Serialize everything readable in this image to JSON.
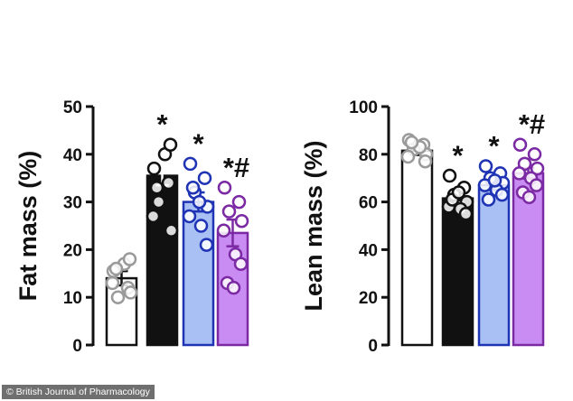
{
  "chart_data": [
    {
      "type": "bar",
      "ylabel": "Fat mass (%)",
      "ylim": [
        0,
        50
      ],
      "yticks": [
        0,
        10,
        20,
        30,
        40,
        50
      ],
      "grid": false,
      "series": [
        {
          "color": "#ffffff",
          "edge": "#111111",
          "point_color": "#9a9a9a",
          "value": 14,
          "error": 1.5,
          "points": [
            15.5,
            12,
            10,
            11,
            13,
            17,
            18,
            16
          ],
          "annotation": ""
        },
        {
          "color": "#111111",
          "edge": "#111111",
          "point_color": "#111111",
          "value": 35.5,
          "error": 2.0,
          "points": [
            37,
            34,
            30,
            24,
            27,
            40,
            42,
            33
          ],
          "annotation": "*"
        },
        {
          "color": "#a9c0f4",
          "edge": "#1f33b5",
          "point_color": "#1f33b5",
          "value": 30,
          "error": 2.0,
          "points": [
            38,
            35,
            32,
            29,
            27,
            25,
            21,
            33,
            30
          ],
          "annotation": "*"
        },
        {
          "color": "#c98cf2",
          "edge": "#7b2aa3",
          "point_color": "#7b2aa3",
          "value": 23.5,
          "error": 2.8,
          "points": [
            33,
            30,
            28,
            26,
            24,
            19,
            17,
            13,
            12
          ],
          "annotation": "*#"
        }
      ]
    },
    {
      "type": "bar",
      "ylabel": "Lean mass (%)",
      "ylim": [
        0,
        100
      ],
      "yticks": [
        0,
        20,
        40,
        60,
        80,
        100
      ],
      "grid": false,
      "series": [
        {
          "color": "#ffffff",
          "edge": "#111111",
          "point_color": "#9a9a9a",
          "value": 81.5,
          "error": 1.8,
          "points": [
            86,
            84,
            82,
            80,
            79,
            83,
            77,
            85
          ],
          "annotation": ""
        },
        {
          "color": "#111111",
          "edge": "#111111",
          "point_color": "#111111",
          "value": 61.5,
          "error": 1.8,
          "points": [
            71,
            66,
            63,
            60,
            58,
            57,
            55,
            61,
            64
          ],
          "annotation": "*"
        },
        {
          "color": "#a9c0f4",
          "edge": "#1f33b5",
          "point_color": "#1f33b5",
          "value": 67,
          "error": 2.0,
          "points": [
            75,
            72,
            70,
            68,
            67,
            65,
            63,
            61,
            69
          ],
          "annotation": "*"
        },
        {
          "color": "#c98cf2",
          "edge": "#7b2aa3",
          "point_color": "#7b2aa3",
          "value": 72,
          "error": 2.2,
          "points": [
            84,
            80,
            76,
            74,
            72,
            70,
            67,
            64,
            62
          ],
          "annotation": "*#"
        }
      ]
    }
  ],
  "credit": "© British Journal of Pharmacology"
}
